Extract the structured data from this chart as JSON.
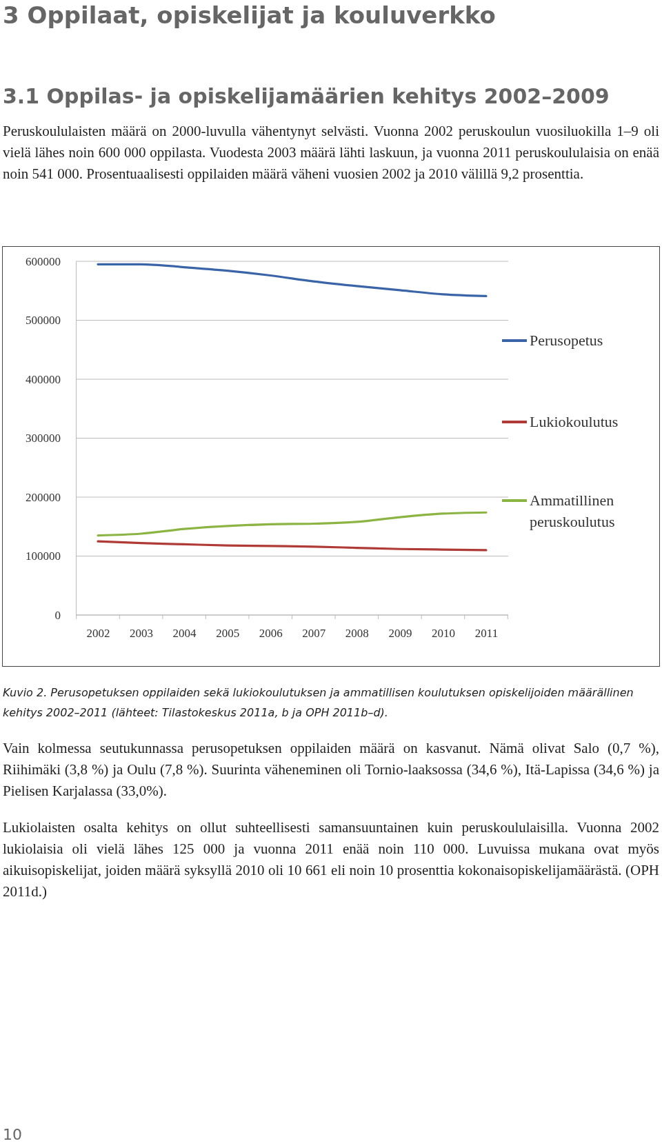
{
  "chart_data": {
    "type": "line",
    "title": "3 Oppilaat, opiskelijat ja kouluverkko",
    "subtitle": "3.1 Oppilas- ja opiskelijamäärien kehitys 2002–2009",
    "annotations": [
      "Peruskoululaisten määrä on 2000-luvulla vähentynyt selvästi. Vuonna 2002 peruskoulun vuosiluokilla 1–9 oli vielä lähes noin 600 000 oppilasta. Vuodesta 2003 määrä lähti laskuun, ja vuonna 2011 peruskoululaisia on enää noin 541 000. Prosentuaalisesti oppilaiden määrä väheni vuosien 2002 ja 2010 välillä 9,2 prosenttia.",
      "Kuvio 2. Perusopetuksen oppilaiden sekä lukiokoulutuksen ja ammatillisen koulutuksen opiskelijoiden määrällinen kehitys 2002–2011 (lähteet: Tilastokeskus 2011a, b ja OPH 2011b–d).",
      "Vain kolmessa seutukunnassa perusopetuksen oppilaiden määrä on kasvanut. Nämä olivat Salo (0,7 %), Riihimäki (3,8 %) ja Oulu (7,8 %). Suurinta väheneminen oli Tornio-laaksossa (34,6 %), Itä-Lapissa (34,6 %) ja Pielisen Karjalassa (33,0%).",
      "Lukiolaisten osalta kehitys on ollut suhteellisesti samansuuntainen kuin peruskoululaisilla. Vuonna 2002 lukiolaisia oli vielä lähes 125 000 ja vuonna 2011 enää noin 110 000. Luvuissa mukana ovat myös aikuisopiskelijat, joiden määrä syksyllä 2010 oli 10 661 eli noin 10 prosenttia kokonaisopiskelijamäärästä. (OPH 2011d.)",
      "10"
    ],
    "categories": [
      "2002",
      "2003",
      "2004",
      "2005",
      "2006",
      "2007",
      "2008",
      "2009",
      "2010",
      "2011"
    ],
    "series": [
      {
        "name": "Perusopetus",
        "color": "#3a64a8",
        "values": [
          595000,
          595000,
          590000,
          584000,
          576000,
          566000,
          558000,
          551000,
          544000,
          541000
        ]
      },
      {
        "name": "Lukiokoulutus",
        "color": "#b03a36",
        "values": [
          125000,
          122000,
          120000,
          118000,
          117000,
          116000,
          114000,
          112000,
          111000,
          110000
        ]
      },
      {
        "name": "Ammatillinen peruskoulutus",
        "color": "#8cb443",
        "values": [
          135000,
          138000,
          146000,
          151000,
          154000,
          155000,
          158000,
          166000,
          172000,
          174000
        ]
      }
    ],
    "ylim": [
      0,
      600000
    ],
    "yticks": [
      0,
      100000,
      200000,
      300000,
      400000,
      500000,
      600000
    ],
    "grid": "y",
    "legend": "right",
    "line_style": "solid",
    "marker": "none"
  }
}
